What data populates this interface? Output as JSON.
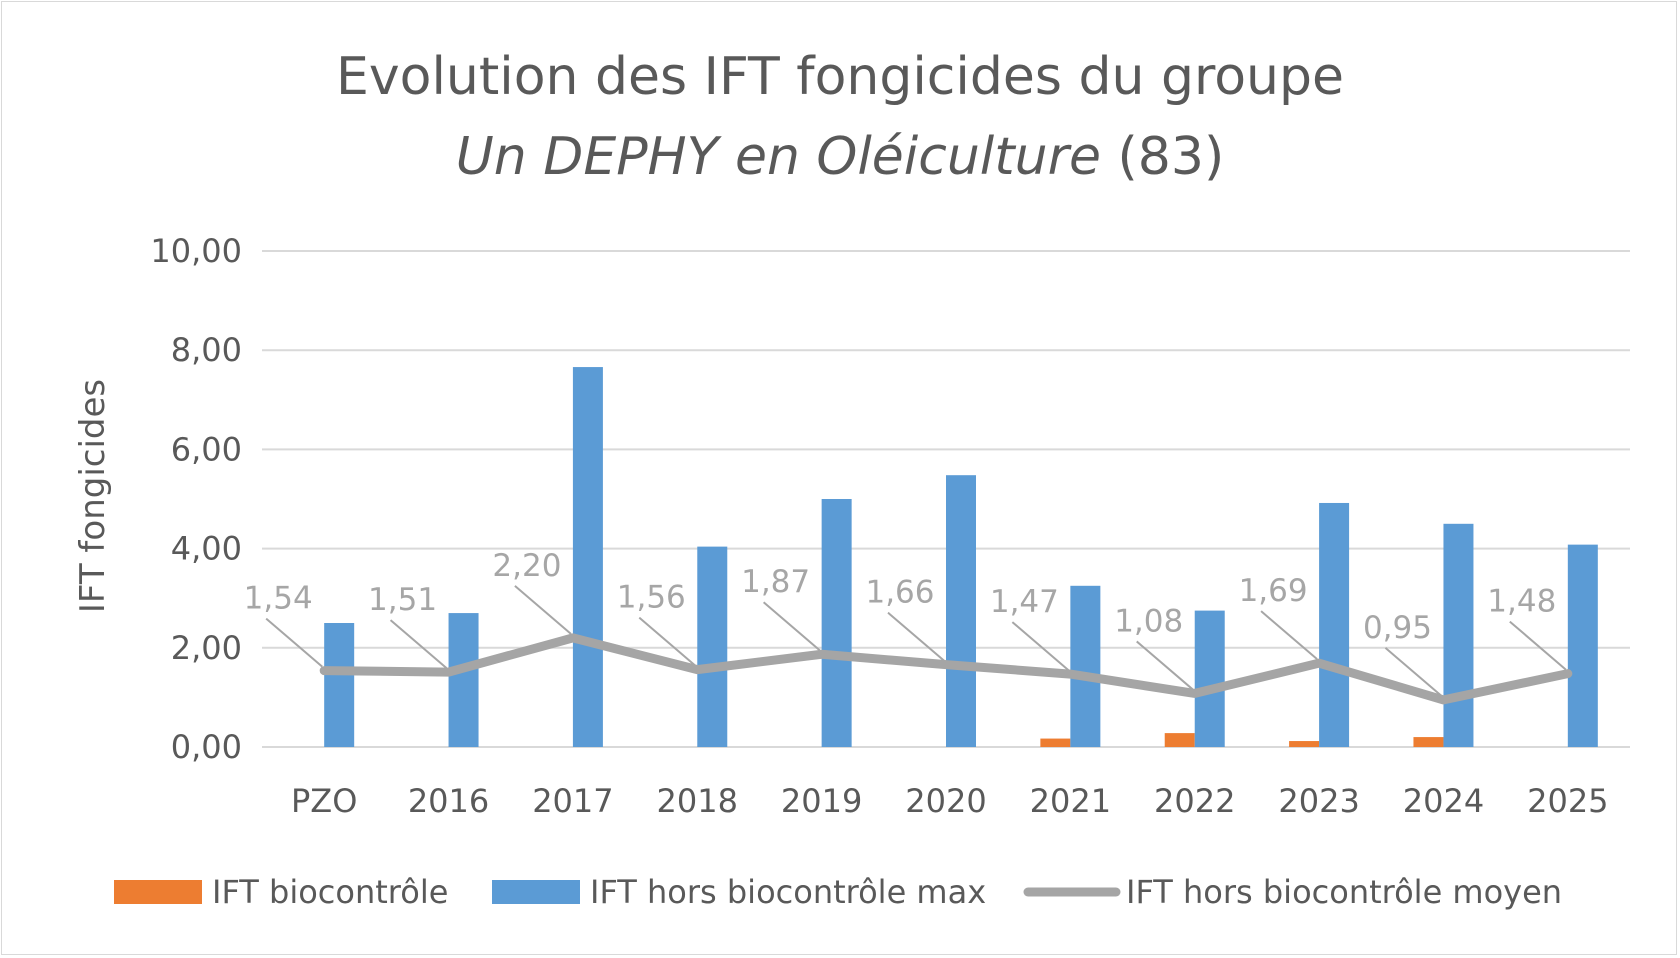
{
  "chart_data": {
    "type": "bar",
    "title_line1": "Evolution des IFT fongicides du groupe",
    "title_line2_italic": "Un DEPHY en Oléiculture",
    "title_line2_rest": " (83)",
    "ylabel": "IFT fongicides",
    "ylim": [
      0,
      10
    ],
    "yticks": [
      "0,00",
      "2,00",
      "4,00",
      "6,00",
      "8,00",
      "10,00"
    ],
    "grid": true,
    "legend_position": "bottom",
    "categories": [
      "PZO",
      "2016",
      "2017",
      "2018",
      "2019",
      "2020",
      "2021",
      "2022",
      "2023",
      "2024",
      "2025"
    ],
    "series": [
      {
        "name": "IFT biocontrôle",
        "type": "bar",
        "color": "#ed7d31",
        "values": [
          0,
          0,
          0,
          0,
          0,
          0,
          0.17,
          0.28,
          0.12,
          0.2,
          0
        ]
      },
      {
        "name": "IFT hors biocontrôle max",
        "type": "bar",
        "color": "#5b9bd5",
        "values": [
          2.5,
          2.7,
          7.66,
          4.04,
          5.0,
          5.48,
          3.25,
          2.75,
          4.92,
          4.5,
          4.08
        ]
      },
      {
        "name": "IFT hors biocontrôle moyen",
        "type": "line",
        "color": "#a5a5a5",
        "values": [
          1.54,
          1.51,
          2.2,
          1.56,
          1.87,
          1.66,
          1.47,
          1.08,
          1.69,
          0.95,
          1.48
        ],
        "labels": [
          "1,54",
          "1,51",
          "2,20",
          "1,56",
          "1,87",
          "1,66",
          "1,47",
          "1,08",
          "1,69",
          "0,95",
          "1,48"
        ]
      }
    ]
  }
}
